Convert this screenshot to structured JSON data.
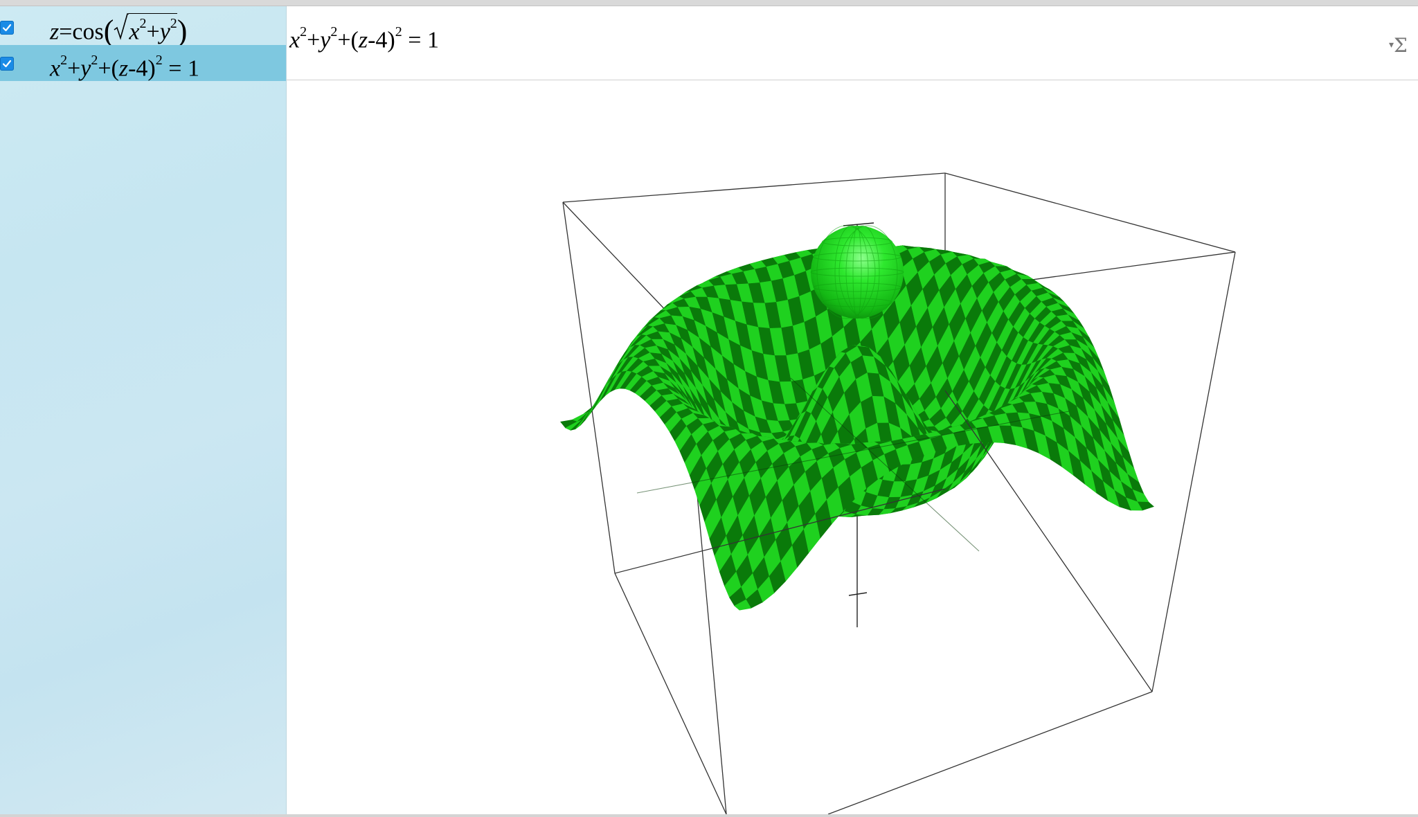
{
  "sidebar": {
    "items": [
      {
        "checked": true,
        "parts": {
          "z": "z",
          "eq": "=",
          "fn": "cos",
          "x": "x",
          "x_exp": "2",
          "plus": "+",
          "y": "y",
          "y_exp": "2"
        }
      },
      {
        "checked": true,
        "selected": true,
        "parts": {
          "x": "x",
          "x_exp": "2",
          "plus1": "+",
          "y": "y",
          "y_exp": "2",
          "plus2": "+(",
          "z": "z",
          "minus4": "-4)",
          "p_exp": "2",
          "rhs": " = 1"
        }
      }
    ]
  },
  "input": {
    "parts": {
      "x": "x",
      "x_exp": "2",
      "plus1": "+",
      "y": "y",
      "y_exp": "2",
      "plus2": "+(",
      "z": "z",
      "minus4": "-4)",
      "p_exp": "2",
      "rhs": " = 1"
    },
    "menu_icon": "sigma-icon",
    "menu_symbol": "Σ"
  },
  "graph": {
    "surface_color": "#1fd11f",
    "surface_check_color": "#0a7a0a",
    "sphere_color": "#22e022",
    "sphere_center": [
      0,
      0,
      4
    ],
    "sphere_radius": 1
  },
  "colors": {
    "sidebar_bg": "#c9e7f2",
    "sidebar_selected": "#7ec8e0",
    "checkbox": "#1a8be6"
  }
}
